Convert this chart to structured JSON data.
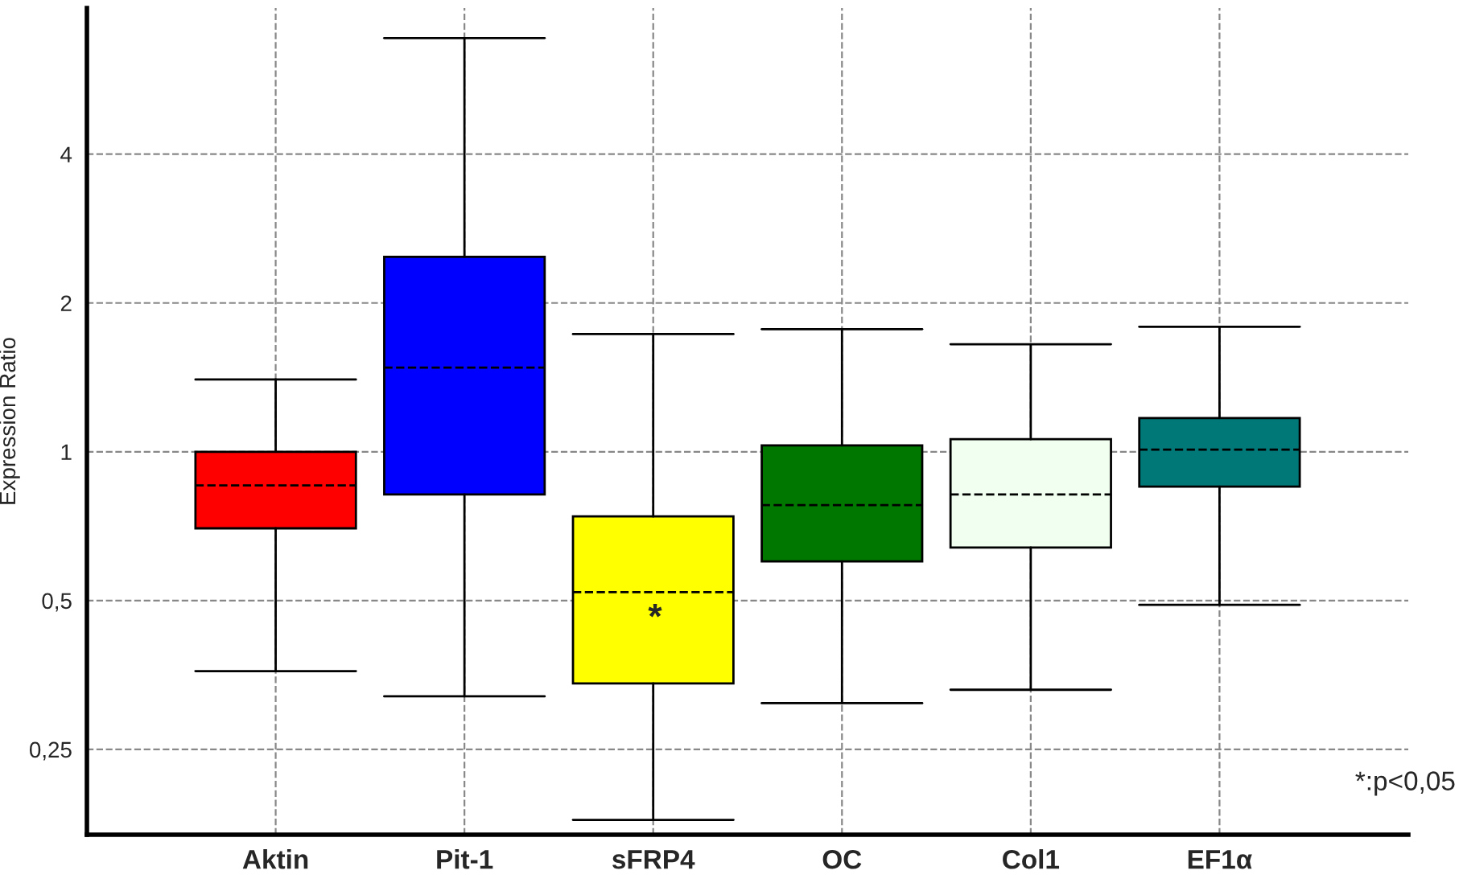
{
  "chart_data": {
    "type": "box",
    "ylabel": "Expression Ratio",
    "log": true,
    "categories": [
      "Aktin",
      "Pit-1",
      "sFRP4",
      "OC",
      "Col1",
      "EF1α"
    ],
    "colors": [
      "#ff0000",
      "#0000ff",
      "#ffff00",
      "#007800",
      "#f0fff0",
      "#007878"
    ],
    "boxes": [
      {
        "low": 0.36,
        "q1": 0.7,
        "median": 0.855,
        "q3": 1.0,
        "high": 1.4
      },
      {
        "low": 0.32,
        "q1": 0.82,
        "median": 1.48,
        "q3": 2.48,
        "high": 6.87
      },
      {
        "low": 0.18,
        "q1": 0.34,
        "median": 0.52,
        "q3": 0.74,
        "high": 1.73
      },
      {
        "low": 0.31,
        "q1": 0.6,
        "median": 0.78,
        "q3": 1.03,
        "high": 1.77
      },
      {
        "low": 0.33,
        "q1": 0.64,
        "median": 0.82,
        "q3": 1.06,
        "high": 1.65
      },
      {
        "low": 0.49,
        "q1": 0.85,
        "median": 1.01,
        "q3": 1.17,
        "high": 1.79
      }
    ],
    "ylim": [
      0.168,
      7.9
    ],
    "yticks": [
      {
        "value": 0.25,
        "label": "0,25"
      },
      {
        "value": 0.5,
        "label": "0,5"
      },
      1,
      2,
      4
    ],
    "grid": true,
    "annotations": [
      "*",
      "*:p<0,05"
    ]
  }
}
